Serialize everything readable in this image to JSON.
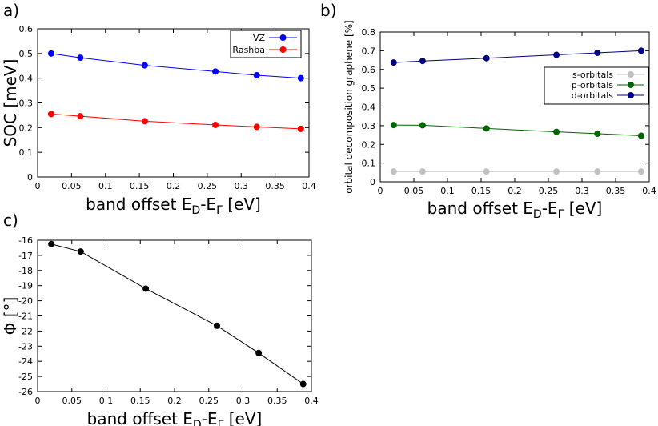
{
  "chart_data": [
    {
      "id": "a",
      "panel_label": "a)",
      "type": "line",
      "xlabel_main": "band offset E",
      "xlabel_sub1": "D",
      "xlabel_mid": "-E",
      "xlabel_sub2": "Γ",
      "xlabel_unit": " [eV]",
      "ylabel": "SOC [meV]",
      "xlim": [
        0,
        0.4
      ],
      "ylim": [
        0,
        0.6
      ],
      "xticks": [
        "0",
        "0.05",
        "0.1",
        "0.15",
        "0.2",
        "0.25",
        "0.3",
        "0.35",
        "0.4"
      ],
      "yticks": [
        "0",
        "0.1",
        "0.2",
        "0.3",
        "0.4",
        "0.5",
        "0.6"
      ],
      "legend_position": "top-right",
      "series": [
        {
          "name": "VZ",
          "color": "#0000ff",
          "x": [
            0.02,
            0.063,
            0.158,
            0.262,
            0.323,
            0.388
          ],
          "y": [
            0.5,
            0.483,
            0.452,
            0.427,
            0.412,
            0.4
          ]
        },
        {
          "name": "Rashba",
          "color": "#ff0000",
          "x": [
            0.02,
            0.063,
            0.158,
            0.262,
            0.323,
            0.388
          ],
          "y": [
            0.255,
            0.246,
            0.226,
            0.211,
            0.203,
            0.195
          ]
        }
      ]
    },
    {
      "id": "b",
      "panel_label": "b)",
      "type": "line",
      "xlabel_main": "band offset E",
      "xlabel_sub1": "D",
      "xlabel_mid": "-E",
      "xlabel_sub2": "Γ",
      "xlabel_unit": " [eV]",
      "ylabel": "orbital decomposition graphene [%]",
      "xlim": [
        0,
        0.4
      ],
      "ylim": [
        0,
        0.8
      ],
      "xticks": [
        "0",
        "0.05",
        "0.1",
        "0.15",
        "0.2",
        "0.25",
        "0.3",
        "0.35",
        "0.4"
      ],
      "yticks": [
        "0",
        "0.1",
        "0.2",
        "0.3",
        "0.4",
        "0.5",
        "0.6",
        "0.7",
        "0.8"
      ],
      "legend_position": "middle-right",
      "series": [
        {
          "name": "s-orbitals",
          "color": "#c0c0c0",
          "x": [
            0.02,
            0.063,
            0.158,
            0.262,
            0.323,
            0.388
          ],
          "y": [
            0.055,
            0.055,
            0.055,
            0.055,
            0.055,
            0.055
          ]
        },
        {
          "name": "p-orbitals",
          "color": "#006400",
          "x": [
            0.02,
            0.063,
            0.158,
            0.262,
            0.323,
            0.388
          ],
          "y": [
            0.303,
            0.302,
            0.285,
            0.267,
            0.257,
            0.246
          ]
        },
        {
          "name": "d-orbitals",
          "color": "#000080",
          "x": [
            0.02,
            0.063,
            0.158,
            0.262,
            0.323,
            0.388
          ],
          "y": [
            0.637,
            0.645,
            0.66,
            0.678,
            0.689,
            0.7
          ]
        }
      ]
    },
    {
      "id": "c",
      "panel_label": "c)",
      "type": "line",
      "xlabel_main": "band offset E",
      "xlabel_sub1": "D",
      "xlabel_mid": "-E",
      "xlabel_sub2": "Γ",
      "xlabel_unit": " [eV]",
      "ylabel": "Φ [°]",
      "xlim": [
        0,
        0.4
      ],
      "ylim": [
        -26,
        -16
      ],
      "xticks": [
        "0",
        "0.05",
        "0.1",
        "0.15",
        "0.2",
        "0.25",
        "0.3",
        "0.35",
        "0.4"
      ],
      "yticks": [
        "-26",
        "-25",
        "-24",
        "-23",
        "-22",
        "-21",
        "-20",
        "-19",
        "-18",
        "-17",
        "-16"
      ],
      "series": [
        {
          "color": "#000000",
          "x": [
            0.02,
            0.063,
            0.158,
            0.262,
            0.323,
            0.388
          ],
          "y": [
            -16.25,
            -16.75,
            -19.2,
            -21.65,
            -23.45,
            -25.5
          ]
        }
      ]
    }
  ]
}
